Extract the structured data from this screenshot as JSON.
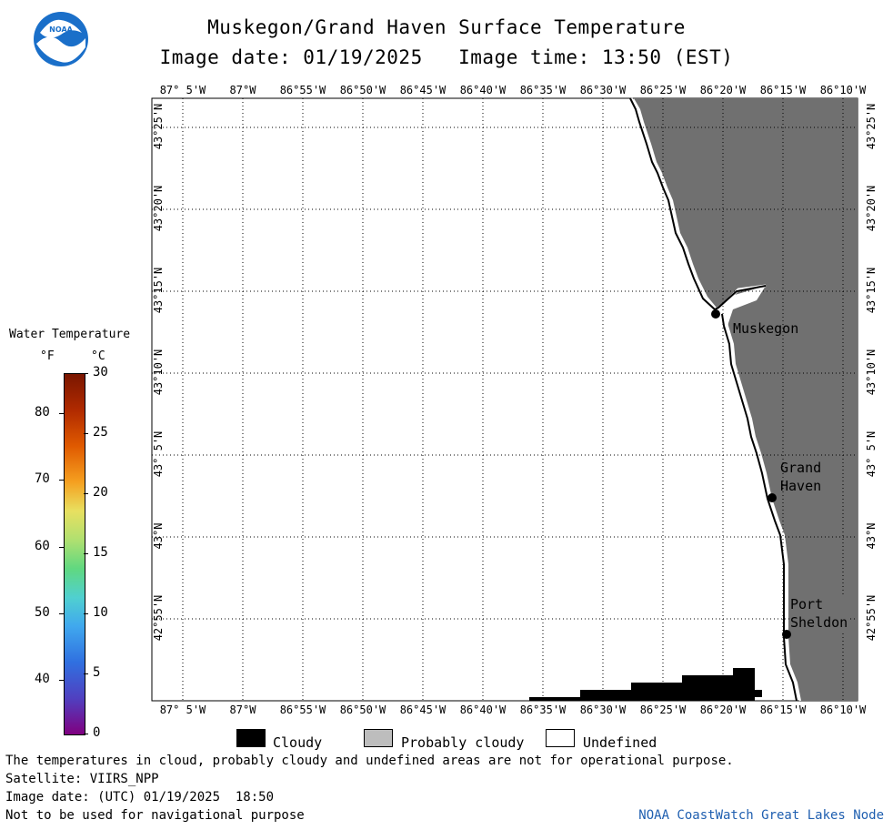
{
  "header": {
    "title": "Muskegon/Grand Haven Surface Temperature",
    "subtitle": "Image date: 01/19/2025   Image time: 13:50 (EST)"
  },
  "logo": {
    "text": "NOAA",
    "icon": "noaa-logo"
  },
  "map": {
    "lon_ticks": [
      "87° 5'W",
      "87°W",
      "86°55'W",
      "86°50'W",
      "86°45'W",
      "86°40'W",
      "86°35'W",
      "86°30'W",
      "86°25'W",
      "86°20'W",
      "86°15'W",
      "86°10'W"
    ],
    "lat_ticks": [
      "43°25'N",
      "43°20'N",
      "43°15'N",
      "43°10'N",
      "43° 5'N",
      "43°N",
      "42°55'N"
    ],
    "places": [
      {
        "name": "Muskegon"
      },
      {
        "name": "Grand\nHaven"
      },
      {
        "name": "Port\nSheldon"
      }
    ],
    "land_color": "#707070",
    "cloud_color": "#000000"
  },
  "colorbar": {
    "title": "Water Temperature",
    "unit_f": "°F",
    "unit_c": "°C",
    "f_ticks": [
      "80",
      "70",
      "60",
      "50",
      "40"
    ],
    "c_ticks": [
      "30",
      "25",
      "20",
      "15",
      "10",
      "5",
      "0"
    ]
  },
  "legend": {
    "cloudy": "Cloudy",
    "probably_cloudy": "Probably cloudy",
    "undefined": "Undefined"
  },
  "footer": {
    "line1": "The temperatures in cloud, probably cloudy and undefined areas are not for operational purpose.",
    "line2": "Satellite: VIIRS_NPP",
    "line3": "Image date: (UTC) 01/19/2025  18:50",
    "line4": "Not to be used for navigational purpose",
    "credit": "NOAA CoastWatch Great Lakes Node"
  }
}
